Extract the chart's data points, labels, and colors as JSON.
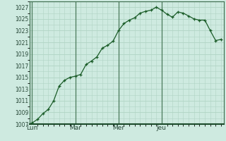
{
  "background_color": "#ceeae0",
  "grid_color": "#b0d4c4",
  "line_color": "#1a5c28",
  "marker_color": "#1a5c28",
  "ylim": [
    1007,
    1028
  ],
  "yticks": [
    1007,
    1009,
    1011,
    1013,
    1015,
    1017,
    1019,
    1021,
    1023,
    1025,
    1027
  ],
  "xtick_labels": [
    "Lun",
    "Mar",
    "Mer",
    "Jeu"
  ],
  "xtick_positions": [
    0,
    8,
    16,
    24
  ],
  "vline_color": "#4a7a5a",
  "y": [
    1007.2,
    1007.8,
    1008.8,
    1009.5,
    1011.0,
    1013.5,
    1014.5,
    1015.0,
    1015.2,
    1015.5,
    1017.2,
    1017.8,
    1018.5,
    1020.0,
    1020.5,
    1021.2,
    1023.0,
    1024.2,
    1024.8,
    1025.2,
    1026.0,
    1026.3,
    1026.5,
    1027.0,
    1026.5,
    1025.8,
    1025.3,
    1026.2,
    1026.0,
    1025.5,
    1025.0,
    1024.8,
    1024.8,
    1023.0,
    1021.3,
    1021.5
  ]
}
